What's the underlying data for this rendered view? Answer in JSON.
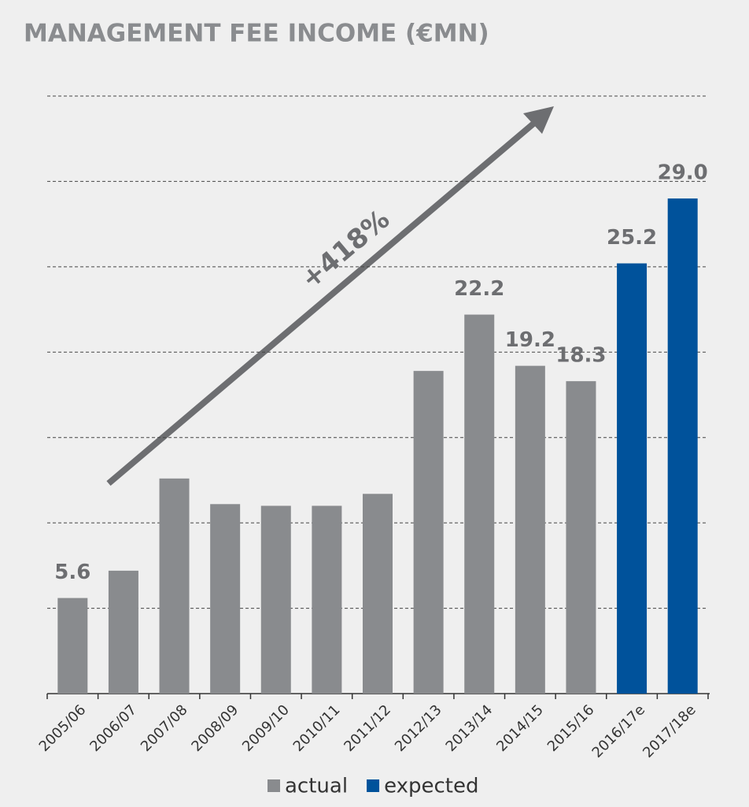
{
  "chart_data": {
    "type": "bar",
    "title": "MANAGEMENT FEE INCOME (€MN)",
    "annotation": "+418%",
    "categories": [
      "2005/06",
      "2006/07",
      "2007/08",
      "2008/09",
      "2009/10",
      "2010/11",
      "2011/12",
      "2012/13",
      "2013/14",
      "2014/15",
      "2015/16",
      "2016/17e",
      "2017/18e"
    ],
    "series": [
      {
        "name": "actual",
        "color": "#898b8e",
        "values": [
          5.6,
          7.2,
          12.6,
          11.1,
          11.0,
          11.0,
          11.7,
          18.9,
          22.2,
          19.2,
          18.3,
          null,
          null
        ],
        "value_labels": [
          "5.6",
          null,
          null,
          null,
          null,
          null,
          null,
          null,
          "22.2",
          "19.2",
          "18.3",
          null,
          null
        ]
      },
      {
        "name": "expected",
        "color": "#00529b",
        "values": [
          null,
          null,
          null,
          null,
          null,
          null,
          null,
          null,
          null,
          null,
          null,
          25.2,
          29.0
        ],
        "value_labels": [
          null,
          null,
          null,
          null,
          null,
          null,
          null,
          null,
          null,
          null,
          null,
          "25.2",
          "29.0"
        ]
      }
    ],
    "ylim": [
      0,
      35
    ],
    "yticks": [
      5,
      10,
      15,
      20,
      25,
      30,
      35
    ],
    "grid": true,
    "legend": "bottom"
  }
}
